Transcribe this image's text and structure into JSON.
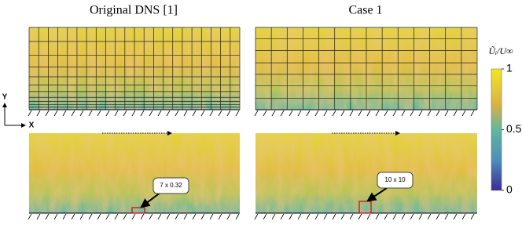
{
  "panels": {
    "titles": [
      "Original DNS [1]",
      "Case 1"
    ]
  },
  "axes": {
    "y": "Y",
    "x": "X"
  },
  "annotations": [
    "7 x 0.32",
    "10 x 10"
  ],
  "colorbar": {
    "label": "Ũᵢ/U∞",
    "ticks": [
      1,
      0.5,
      0
    ]
  }
}
